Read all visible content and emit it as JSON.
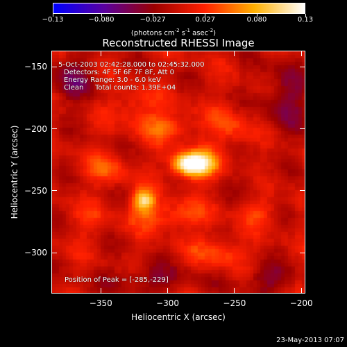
{
  "colorbar": {
    "min": -0.13,
    "max": 0.13,
    "ticks": [
      "-0.13",
      "-0.080",
      "-0.027",
      "0.027",
      "0.080",
      "0.13"
    ],
    "tick_values": [
      -0.13,
      -0.08,
      -0.027,
      0.027,
      0.08,
      0.13
    ],
    "units_prefix": "(photons cm",
    "units_exp1": "-2",
    "units_mid": " s",
    "units_exp2": "-1",
    "units_mid2": " asec",
    "units_exp3": "-2",
    "units_suffix": ")",
    "colormap": [
      "#0000ff",
      "#5a00a0",
      "#9b0000",
      "#ff2000",
      "#ffb000",
      "#ffffff"
    ]
  },
  "chart_data": {
    "type": "heatmap",
    "title": "Reconstructed RHESSI Image",
    "xlabel": "Heliocentric X (arcsec)",
    "ylabel": "Heliocentric Y (arcsec)",
    "xlim": [
      -387,
      -197
    ],
    "ylim": [
      -333,
      -137
    ],
    "xticks": [
      -350,
      -300,
      -250,
      -200
    ],
    "yticks": [
      -150,
      -200,
      -250,
      -300
    ],
    "xtick_labels": [
      "−350",
      "−300",
      "−250",
      "−200"
    ],
    "ytick_labels": [
      "−150",
      "−200",
      "−250",
      "−300"
    ],
    "peak": {
      "x": -285,
      "y": -229,
      "value": 0.13
    },
    "sources": [
      {
        "x": -285,
        "y": -229,
        "value": 0.13,
        "sx": 9,
        "sy": 7
      },
      {
        "x": -318,
        "y": -258,
        "value": 0.1,
        "sx": 6,
        "sy": 6
      },
      {
        "x": -272,
        "y": -228,
        "value": 0.065,
        "sx": 9,
        "sy": 8
      },
      {
        "x": -300,
        "y": -198,
        "value": 0.05,
        "sx": 14,
        "sy": 8
      },
      {
        "x": -300,
        "y": -270,
        "value": 0.045,
        "sx": 22,
        "sy": 8
      },
      {
        "x": -345,
        "y": -232,
        "value": 0.04,
        "sx": 10,
        "sy": 10
      },
      {
        "x": -262,
        "y": -300,
        "value": 0.04,
        "sx": 14,
        "sy": 9
      },
      {
        "x": -325,
        "y": -182,
        "value": 0.035,
        "sx": 12,
        "sy": 10
      },
      {
        "x": -253,
        "y": -200,
        "value": 0.035,
        "sx": 12,
        "sy": 12
      },
      {
        "x": -230,
        "y": -268,
        "value": 0.03,
        "sx": 10,
        "sy": 8
      },
      {
        "x": -360,
        "y": -275,
        "value": 0.02,
        "sx": 10,
        "sy": 10
      },
      {
        "x": -212,
        "y": -175,
        "value": -0.045,
        "sx": 12,
        "sy": 20
      },
      {
        "x": -372,
        "y": -160,
        "value": -0.04,
        "sx": 12,
        "sy": 14
      },
      {
        "x": -315,
        "y": -322,
        "value": -0.035,
        "sx": 25,
        "sy": 8
      },
      {
        "x": -225,
        "y": -322,
        "value": -0.04,
        "sx": 14,
        "sy": 8
      },
      {
        "x": -238,
        "y": -245,
        "value": -0.02,
        "sx": 8,
        "sy": 8
      }
    ]
  },
  "annotations": {
    "time_range": "5-Oct-2003 02:42:28.000 to 02:45:32.000",
    "detectors": "Detectors: 4F 5F 6F 7F 8F, Att 0",
    "energy": "Energy Range: 3.0 - 6.0 keV",
    "clean": "Clean",
    "total_counts": "Total counts: 1.39E+04",
    "peak_label": "Position of Peak = [-285,-229]"
  },
  "colorbar_labels": [
    "−0.13",
    "−0.080",
    "−0.027",
    "0.027",
    "0.080",
    "0.13"
  ],
  "timestamp": "23-May-2013 07:07"
}
